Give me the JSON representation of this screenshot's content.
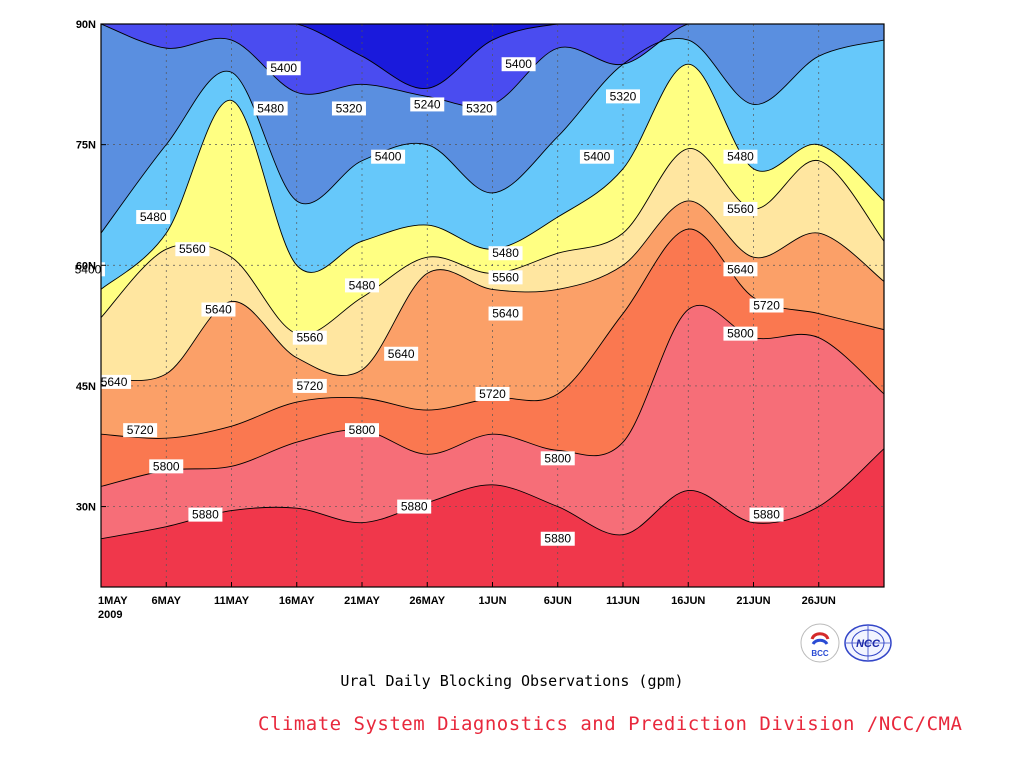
{
  "chart_data": {
    "type": "heatmap",
    "subtype": "filled-contour (time-latitude)",
    "title": "",
    "caption": "Ural Daily Blocking Observations (gpm)",
    "credit": "Climate System Diagnostics and Prediction Division /NCC/CMA",
    "xlabel": "",
    "ylabel": "",
    "x_ticks": [
      "1MAY",
      "6MAY",
      "11MAY",
      "16MAY",
      "21MAY",
      "26MAY",
      "1JUN",
      "6JUN",
      "11JUN",
      "16JUN",
      "21JUN",
      "26JUN"
    ],
    "x_year": "2009",
    "x_range": [
      "2009-05-01",
      "2009-06-30"
    ],
    "y_ticks": [
      "30N",
      "45N",
      "60N",
      "75N",
      "90N"
    ],
    "y_range_deg": [
      20,
      90
    ],
    "grid": true,
    "levels": [
      5240,
      5320,
      5400,
      5480,
      5560,
      5640,
      5720,
      5800,
      5880
    ],
    "level_colors": [
      "#1a1adc",
      "#4a4cf0",
      "#5a8fe0",
      "#66c8fa",
      "#ffff82",
      "#ffe6a0",
      "#fba068",
      "#fa7850",
      "#f66e78",
      "#f0374b"
    ],
    "contours": [
      {
        "level": 5880,
        "lat_profile_deg": [
          26.0,
          27.5,
          29.5,
          29.8,
          28.0,
          30.5,
          32.7,
          30.0,
          26.5,
          32.0,
          28.0,
          30.0,
          37.2
        ]
      },
      {
        "level": 5800,
        "lat_profile_deg": [
          32.5,
          34.5,
          35.0,
          38.0,
          39.5,
          36.5,
          39.0,
          37.0,
          38.0,
          54.5,
          51.0,
          51.0,
          44.0
        ]
      },
      {
        "level": 5720,
        "lat_profile_deg": [
          39.0,
          38.5,
          40.0,
          43.0,
          43.5,
          42.0,
          43.5,
          44.0,
          54.0,
          64.5,
          56.0,
          54.0,
          52.0
        ]
      },
      {
        "level": 5640,
        "lat_profile_deg": [
          46.0,
          46.5,
          55.5,
          48.5,
          47.0,
          59.0,
          57.0,
          57.0,
          60.0,
          68.0,
          61.0,
          64.0,
          58.0
        ]
      },
      {
        "level": 5560,
        "lat_profile_deg": [
          53.5,
          62.0,
          61.0,
          51.5,
          56.0,
          61.0,
          59.0,
          61.5,
          64.0,
          74.5,
          67.0,
          73.0,
          63.0
        ]
      },
      {
        "level": 5480,
        "lat_profile_deg": [
          57.0,
          64.0,
          80.5,
          60.0,
          63.0,
          65.0,
          62.0,
          66.0,
          72.0,
          85.0,
          72.0,
          75.0,
          68.0
        ]
      },
      {
        "level": 5400,
        "lat_profile_deg": [
          64.0,
          75.0,
          84.0,
          68.0,
          73.0,
          75.0,
          69.0,
          76.0,
          85.0,
          88.0,
          80.0,
          86.0,
          88.0
        ]
      },
      {
        "level": 5320,
        "lat_profile_deg": [
          90.0,
          87.0,
          88.0,
          81.5,
          82.5,
          81.0,
          80.0,
          87.0,
          85.0,
          90.0,
          90.0,
          90.0,
          90.0
        ]
      },
      {
        "level": 5240,
        "lat_profile_deg": [
          90.0,
          90.0,
          90.0,
          90.0,
          86.0,
          82.0,
          88.0,
          90.0,
          90.0,
          90.0,
          90.0,
          90.0,
          90.0
        ]
      }
    ],
    "contour_labels": [
      {
        "text": "5400",
        "date": "2009-05-15",
        "lat": 84.5
      },
      {
        "text": "5480",
        "date": "2009-05-14",
        "lat": 79.5
      },
      {
        "text": "5320",
        "date": "2009-05-20",
        "lat": 79.5
      },
      {
        "text": "5240",
        "date": "2009-05-26",
        "lat": 80.0
      },
      {
        "text": "5320",
        "date": "2009-05-30",
        "lat": 79.5
      },
      {
        "text": "5400",
        "date": "2009-06-02",
        "lat": 85.0
      },
      {
        "text": "5320",
        "date": "2009-06-10",
        "lat": 81.0
      },
      {
        "text": "5400",
        "date": "2009-05-23",
        "lat": 73.5
      },
      {
        "text": "5400",
        "date": "2009-06-08",
        "lat": 73.5
      },
      {
        "text": "5480",
        "date": "2009-06-19",
        "lat": 73.5
      },
      {
        "text": "5480",
        "date": "2009-05-05",
        "lat": 66.0
      },
      {
        "text": "5560",
        "date": "2009-06-19",
        "lat": 67.0
      },
      {
        "text": "5400",
        "date": "2009-04-30",
        "lat": 59.5
      },
      {
        "text": "5560",
        "date": "2009-05-08",
        "lat": 62.0
      },
      {
        "text": "5480",
        "date": "2009-05-21",
        "lat": 57.5
      },
      {
        "text": "5480",
        "date": "2009-06-01",
        "lat": 61.5
      },
      {
        "text": "5560",
        "date": "2009-06-01",
        "lat": 58.5
      },
      {
        "text": "5640",
        "date": "2009-06-19",
        "lat": 59.5
      },
      {
        "text": "5640",
        "date": "2009-05-10",
        "lat": 54.5
      },
      {
        "text": "5640",
        "date": "2009-06-01",
        "lat": 54.0
      },
      {
        "text": "5720",
        "date": "2009-06-21",
        "lat": 55.0
      },
      {
        "text": "5560",
        "date": "2009-05-17",
        "lat": 51.0
      },
      {
        "text": "5640",
        "date": "2009-05-24",
        "lat": 49.0
      },
      {
        "text": "5800",
        "date": "2009-06-19",
        "lat": 51.5
      },
      {
        "text": "5640",
        "date": "2009-05-02",
        "lat": 45.5
      },
      {
        "text": "5720",
        "date": "2009-05-17",
        "lat": 45.0
      },
      {
        "text": "5720",
        "date": "2009-05-31",
        "lat": 44.0
      },
      {
        "text": "5720",
        "date": "2009-05-04",
        "lat": 39.5
      },
      {
        "text": "5800",
        "date": "2009-05-21",
        "lat": 39.5
      },
      {
        "text": "5800",
        "date": "2009-05-06",
        "lat": 35.0
      },
      {
        "text": "5800",
        "date": "2009-06-05",
        "lat": 36.0
      },
      {
        "text": "5880",
        "date": "2009-05-09",
        "lat": 29.0
      },
      {
        "text": "5880",
        "date": "2009-05-25",
        "lat": 30.0
      },
      {
        "text": "5880",
        "date": "2009-06-05",
        "lat": 26.0
      },
      {
        "text": "5880",
        "date": "2009-06-21",
        "lat": 29.0
      }
    ]
  },
  "logos": [
    {
      "icon": "bcc-logo-icon",
      "text": "BCC"
    },
    {
      "icon": "ncc-logo-icon",
      "text": "NCC"
    }
  ]
}
